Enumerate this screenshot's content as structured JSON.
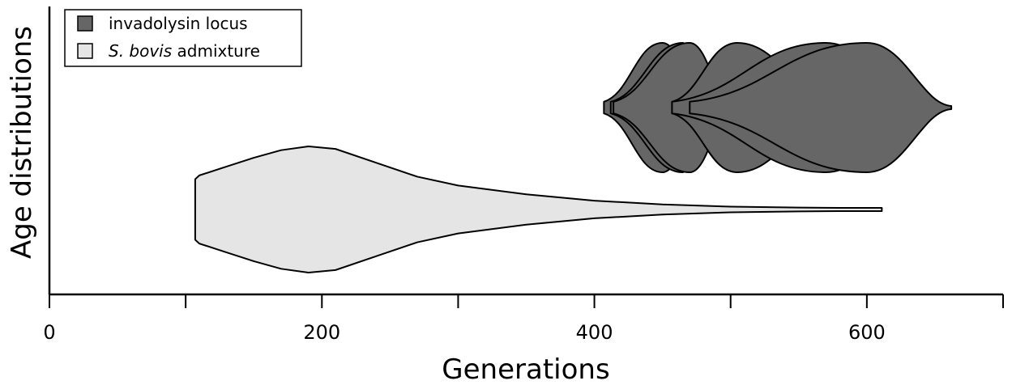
{
  "chart_data": {
    "type": "violin",
    "xlabel": "Generations",
    "ylabel": "Age distributions",
    "xlim": [
      0,
      700
    ],
    "x_ticks": [
      0,
      100,
      200,
      300,
      400,
      500,
      600,
      700
    ],
    "x_tick_labels": [
      "0",
      "",
      "200",
      "",
      "400",
      "",
      "600",
      ""
    ],
    "grid": false,
    "legend": {
      "placement": "top-left",
      "entries": [
        {
          "label": "invadolysin locus",
          "color": "#666666"
        },
        {
          "label_italic": "S. bovis",
          "label_rest": " admixture",
          "color": "#e5e5e5"
        }
      ]
    },
    "series": [
      {
        "name": "invadolysin locus",
        "color": "#666666",
        "row": "upper",
        "violins": [
          {
            "min": 407,
            "max": 480,
            "mode": 450
          },
          {
            "min": 412,
            "max": 475,
            "mode": 465
          },
          {
            "min": 414,
            "max": 500,
            "mode": 470
          },
          {
            "min": 457,
            "max": 575,
            "mode": 505
          },
          {
            "min": 457,
            "max": 640,
            "mode": 570
          },
          {
            "min": 470,
            "max": 662,
            "mode": 600
          }
        ]
      },
      {
        "name": "S. bovis admixture",
        "color": "#e5e5e5",
        "row": "lower",
        "density": [
          [
            107,
            0.48
          ],
          [
            110,
            0.54
          ],
          [
            130,
            0.68
          ],
          [
            150,
            0.82
          ],
          [
            170,
            0.94
          ],
          [
            190,
            1.0
          ],
          [
            210,
            0.96
          ],
          [
            240,
            0.74
          ],
          [
            270,
            0.52
          ],
          [
            300,
            0.38
          ],
          [
            350,
            0.24
          ],
          [
            400,
            0.14
          ],
          [
            450,
            0.08
          ],
          [
            500,
            0.045
          ],
          [
            550,
            0.03
          ],
          [
            580,
            0.025
          ],
          [
            600,
            0.025
          ],
          [
            611,
            0.025
          ]
        ]
      }
    ]
  }
}
